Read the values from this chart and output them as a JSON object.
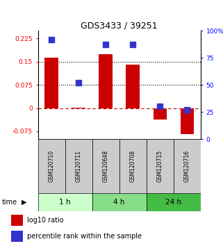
{
  "title": "GDS3433 / 39251",
  "samples": [
    "GSM120710",
    "GSM120711",
    "GSM120648",
    "GSM120708",
    "GSM120715",
    "GSM120716"
  ],
  "log10_ratio": [
    0.163,
    0.002,
    0.175,
    0.14,
    -0.038,
    -0.085
  ],
  "percentile_rank": [
    92,
    52,
    87,
    87,
    30,
    27
  ],
  "groups": [
    {
      "label": "1 h",
      "samples": [
        0,
        1
      ],
      "color": "#ccffcc"
    },
    {
      "label": "4 h",
      "samples": [
        2,
        3
      ],
      "color": "#88dd88"
    },
    {
      "label": "24 h",
      "samples": [
        4,
        5
      ],
      "color": "#44bb44"
    }
  ],
  "ylim_left": [
    -0.1,
    0.25
  ],
  "ylim_right": [
    0,
    100
  ],
  "yticks_left": [
    -0.075,
    0,
    0.075,
    0.15,
    0.225
  ],
  "yticks_right": [
    0,
    25,
    50,
    75,
    100
  ],
  "ytick_labels_right": [
    "0",
    "25",
    "50",
    "75",
    "100%"
  ],
  "bar_color": "#cc0000",
  "dot_color": "#3333cc",
  "dotted_lines": [
    0.075,
    0.15
  ],
  "bar_width": 0.5,
  "dot_size": 30,
  "bg_color": "#ffffff",
  "sample_box_color": "#cccccc",
  "legend_bar_label": "log10 ratio",
  "legend_dot_label": "percentile rank within the sample"
}
